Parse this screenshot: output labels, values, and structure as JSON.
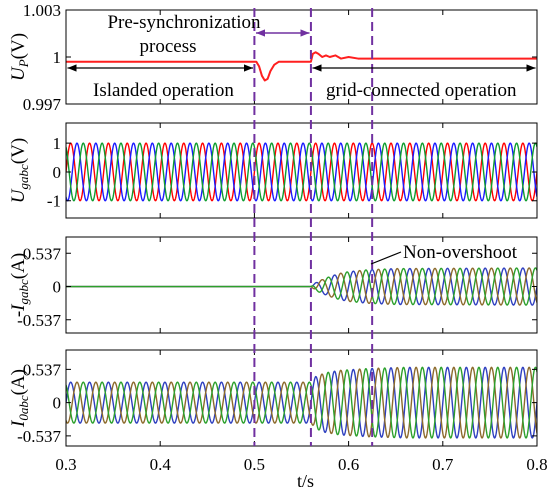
{
  "colors": {
    "event_marker": "#7030a0",
    "annotation_arrow": "#000000"
  },
  "annotations": {
    "pre_sync_line1": "Pre-synchronization",
    "pre_sync_line2": "process",
    "islanded": "Islanded operation",
    "grid_connected": "grid-connected operation",
    "non_overshoot": "Non-overshoot"
  },
  "chart_data": {
    "type": "line",
    "xlabel": "t/s",
    "xlim": [
      0.3,
      0.8
    ],
    "xticks": [
      0.3,
      0.4,
      0.5,
      0.6,
      0.7,
      0.8
    ],
    "event_times": [
      0.5,
      0.56,
      0.625
    ],
    "panels": [
      {
        "ylabel": {
          "symbol": "U",
          "subscript": "P",
          "unit": "(V)"
        },
        "ylim": [
          0.997,
          1.003
        ],
        "yticks": [
          0.997,
          1,
          1.003
        ],
        "series": [
          {
            "color": "#ff1f1f",
            "points": [
              [
                0.3,
                0.9997
              ],
              [
                0.502,
                0.9997
              ],
              [
                0.505,
                0.9994
              ],
              [
                0.508,
                0.9988
              ],
              [
                0.511,
                0.9985
              ],
              [
                0.514,
                0.9986
              ],
              [
                0.517,
                0.9991
              ],
              [
                0.521,
                0.9995
              ],
              [
                0.526,
                0.9997
              ],
              [
                0.56,
                0.9997
              ],
              [
                0.562,
                1.0002
              ],
              [
                0.565,
                1.0003
              ],
              [
                0.568,
                1.0002
              ],
              [
                0.572,
                1.0
              ],
              [
                0.576,
                1.0001
              ],
              [
                0.58,
                1.0
              ],
              [
                0.586,
                1.0001
              ],
              [
                0.592,
                0.9999
              ],
              [
                0.6,
                1.0
              ],
              [
                0.61,
                0.9999
              ],
              [
                0.8,
                0.9999
              ]
            ]
          }
        ]
      },
      {
        "ylabel": {
          "symbol": "U",
          "subscript": "gabc",
          "unit": "(V)"
        },
        "ylim": [
          -1.6,
          1.7
        ],
        "yticks": [
          -1,
          0,
          1
        ],
        "frequency_hz": 50,
        "envelope": [
          [
            0.3,
            1
          ],
          [
            0.8,
            1
          ]
        ],
        "series": [
          {
            "color": "#ff0000",
            "phase_deg": 0
          },
          {
            "color": "#1a1aff",
            "phase_deg": -120
          },
          {
            "color": "#0f9d2f",
            "phase_deg": 120
          }
        ]
      },
      {
        "ylabel": {
          "symbol": "-I",
          "subscript": "gabc",
          "unit": "(A)"
        },
        "ylim": [
          -0.75,
          0.8
        ],
        "yticks": [
          -0.537,
          0,
          0.537
        ],
        "frequency_hz": 50,
        "envelope": [
          [
            0.3,
            0
          ],
          [
            0.56,
            0
          ],
          [
            0.565,
            0.06
          ],
          [
            0.57,
            0.1
          ],
          [
            0.58,
            0.16
          ],
          [
            0.59,
            0.21
          ],
          [
            0.6,
            0.24
          ],
          [
            0.62,
            0.27
          ],
          [
            0.65,
            0.29
          ],
          [
            0.8,
            0.3
          ]
        ],
        "series": [
          {
            "color": "#2e3fbf",
            "phase_deg": 0
          },
          {
            "color": "#8c6a2c",
            "phase_deg": -120
          },
          {
            "color": "#2ca02c",
            "phase_deg": 120
          }
        ]
      },
      {
        "ylabel": {
          "symbol": "I",
          "subscript": "0abc",
          "unit": "(A)"
        },
        "ylim": [
          -0.7,
          0.85
        ],
        "yticks": [
          -0.537,
          0,
          0.537
        ],
        "frequency_hz": 50,
        "envelope": [
          [
            0.3,
            0.33
          ],
          [
            0.56,
            0.33
          ],
          [
            0.565,
            0.42
          ],
          [
            0.575,
            0.48
          ],
          [
            0.59,
            0.52
          ],
          [
            0.62,
            0.55
          ],
          [
            0.66,
            0.57
          ],
          [
            0.8,
            0.57
          ]
        ],
        "series": [
          {
            "color": "#2e3fbf",
            "phase_deg": 0
          },
          {
            "color": "#8c6a2c",
            "phase_deg": -120
          },
          {
            "color": "#2ca02c",
            "phase_deg": 120
          }
        ]
      }
    ]
  }
}
